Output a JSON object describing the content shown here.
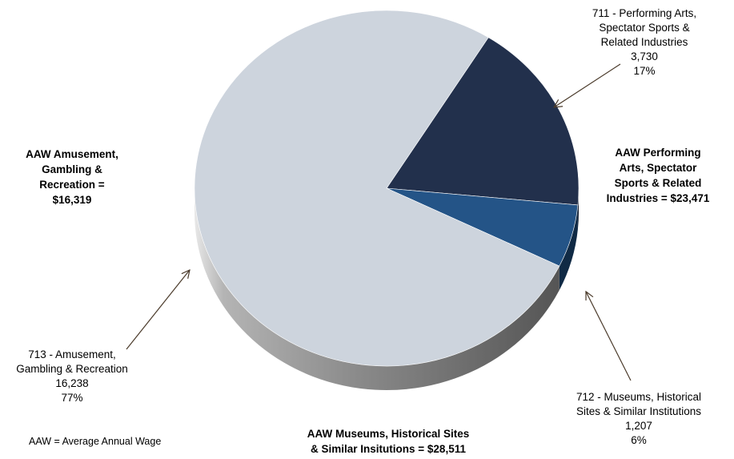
{
  "chart_data": {
    "type": "pie",
    "style": "3d",
    "slices": [
      {
        "name": "711 - Performing Arts, Spectator Sports & Related Industries",
        "label_lines": [
          "711 - Performing Arts,",
          "Spectator Sports &",
          "Related Industries"
        ],
        "value": 3730,
        "value_label": "3,730",
        "percent": 17,
        "percent_label": "17%",
        "color": "#22304c",
        "side_color": "#111a2b"
      },
      {
        "name": "712 - Museums, Historical Sites & Similar Institutions",
        "label_lines": [
          "712 - Museums, Historical",
          "Sites & Similar Institutions"
        ],
        "value": 1207,
        "value_label": "1,207",
        "percent": 6,
        "percent_label": "6%",
        "color": "#245487",
        "side_color": "#102a45"
      },
      {
        "name": "713 - Amusement, Gambling & Recreation",
        "label_lines": [
          "713 - Amusement,",
          "Gambling & Recreation"
        ],
        "value": 16238,
        "value_label": "16,238",
        "percent": 77,
        "percent_label": "77%",
        "color": "#cdd4dd",
        "side_color": "#6c6c6c"
      }
    ],
    "annotations": {
      "aaw_amusement": [
        "AAW Amusement,",
        "Gambling &",
        "Recreation =",
        "$16,319"
      ],
      "aaw_performing": [
        "AAW Performing",
        "Arts, Spectator",
        "Sports & Related",
        "Industries = $23,471"
      ],
      "aaw_museums": [
        "AAW Museums, Historical Sites",
        "& Similar Insitutions = $28,511"
      ]
    },
    "footnote": "AAW = Average Annual Wage"
  }
}
